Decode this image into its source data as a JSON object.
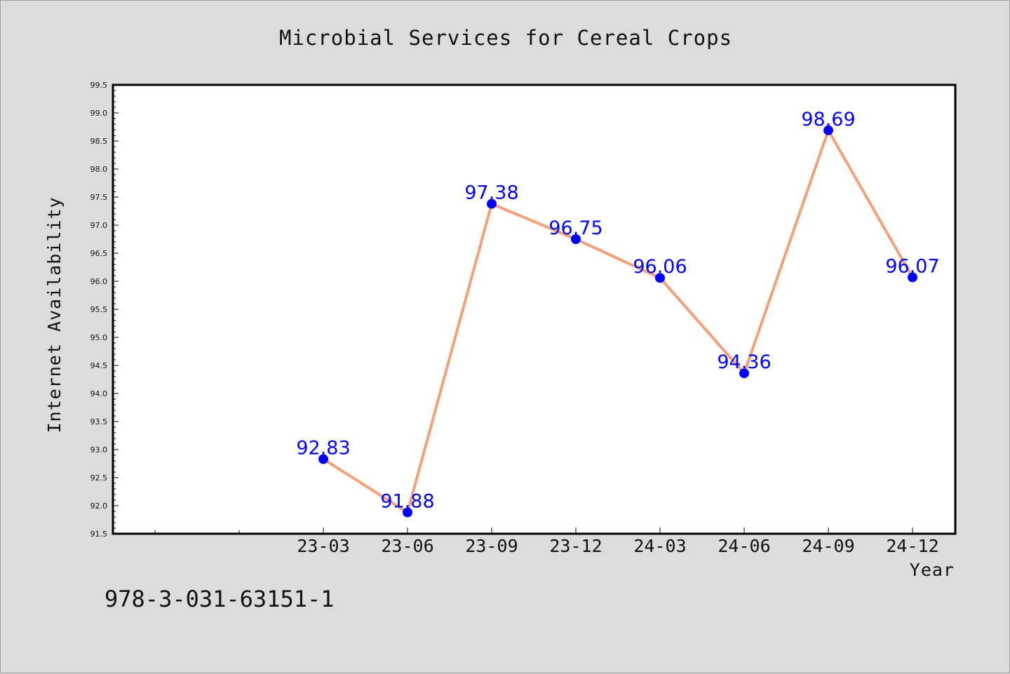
{
  "chart_data": {
    "type": "line",
    "title": "Microbial Services for Cereal Crops",
    "xlabel": "Year",
    "ylabel": "Internet Availability",
    "categories": [
      "23-03",
      "23-06",
      "23-09",
      "23-12",
      "24-03",
      "24-06",
      "24-09",
      "24-12"
    ],
    "series": [
      {
        "values": [
          92.83,
          91.88,
          97.38,
          96.75,
          96.06,
          94.36,
          98.69,
          96.07
        ],
        "labels": [
          "92.83",
          "91.88",
          "97.38",
          "96.75",
          "96.06",
          "94.36",
          "98.69",
          "96.07"
        ],
        "line_color": "#f4a07a",
        "marker_color": "#0000ff"
      }
    ],
    "ylim": [
      91.5,
      99.5
    ],
    "y_major_step": 0.5,
    "y_tick_labels": [
      "91.5",
      "92.0",
      "92.5",
      "93.0",
      "93.5",
      "94.0",
      "94.5",
      "95.0",
      "95.5",
      "96.0",
      "96.5",
      "97.0",
      "97.5",
      "98.0",
      "98.5",
      "99.0",
      "99.5"
    ],
    "x_extra_leading_ticks": 2,
    "grid": false,
    "legend": "none"
  },
  "footer": {
    "isbn": "978-3-031-63151-1"
  }
}
